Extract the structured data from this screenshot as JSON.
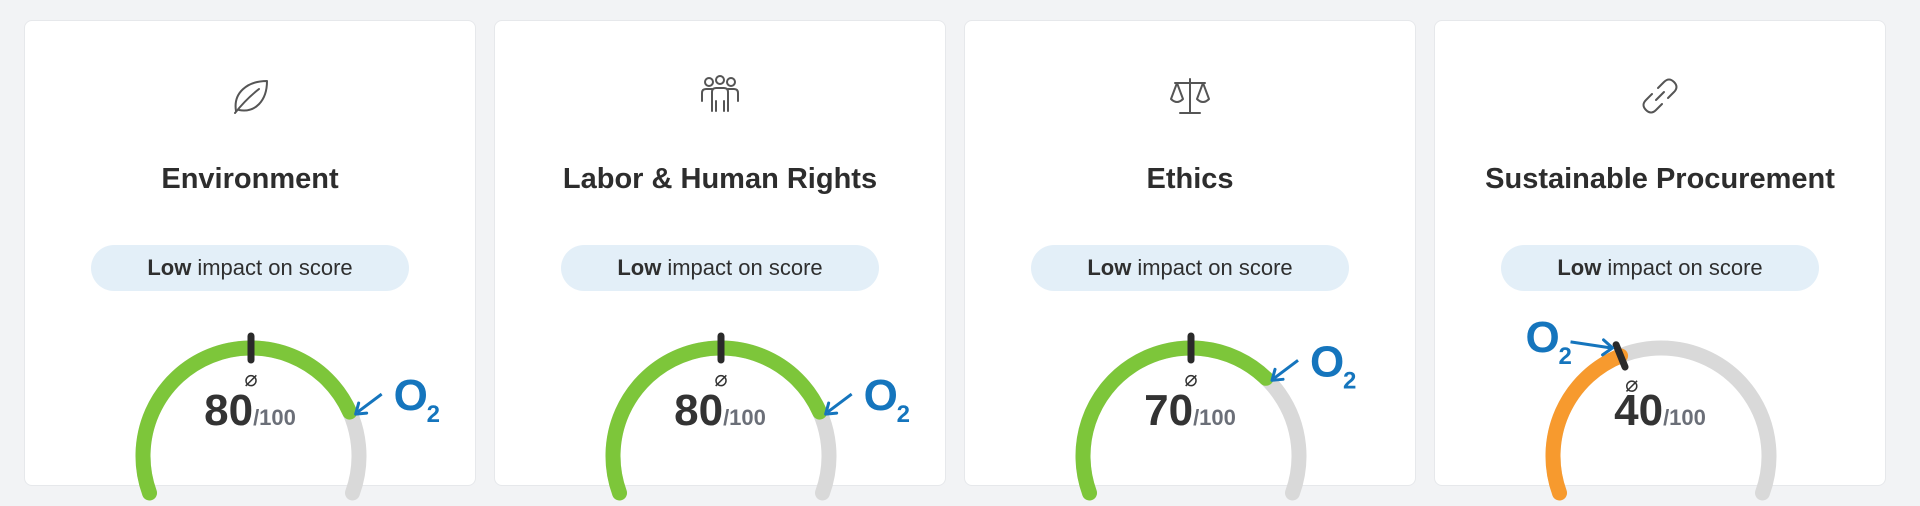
{
  "cards": [
    {
      "title": "Environment",
      "icon": "leaf-icon",
      "impact_level": "Low",
      "impact_text": "impact on score",
      "score": 80,
      "max": "/100",
      "score_color": "#7dc63a",
      "benchmark": 50,
      "avg_symbol": "⌀",
      "o2_letter": "O",
      "o2_sub": "2",
      "o2_side": "right"
    },
    {
      "title": "Labor & Human Rights",
      "icon": "people-icon",
      "impact_level": "Low",
      "impact_text": "impact on score",
      "score": 80,
      "max": "/100",
      "score_color": "#7dc63a",
      "benchmark": 50,
      "avg_symbol": "⌀",
      "o2_letter": "O",
      "o2_sub": "2",
      "o2_side": "right"
    },
    {
      "title": "Ethics",
      "icon": "scales-icon",
      "impact_level": "Low",
      "impact_text": "impact on score",
      "score": 70,
      "max": "/100",
      "score_color": "#7dc63a",
      "benchmark": 50,
      "avg_symbol": "⌀",
      "o2_letter": "O",
      "o2_sub": "2",
      "o2_side": "right"
    },
    {
      "title": "Sustainable Procurement",
      "icon": "link-icon",
      "impact_level": "Low",
      "impact_text": "impact on score",
      "score": 40,
      "max": "/100",
      "score_color": "#f79a2e",
      "benchmark": 40,
      "avg_symbol": "⌀",
      "o2_letter": "O",
      "o2_sub": "2",
      "o2_side": "left"
    }
  ],
  "colors": {
    "track": "#d9d9d9",
    "marker": "#2a2a2a",
    "o2_logo": "#1575bd",
    "pill_bg": "#e3eff8"
  }
}
